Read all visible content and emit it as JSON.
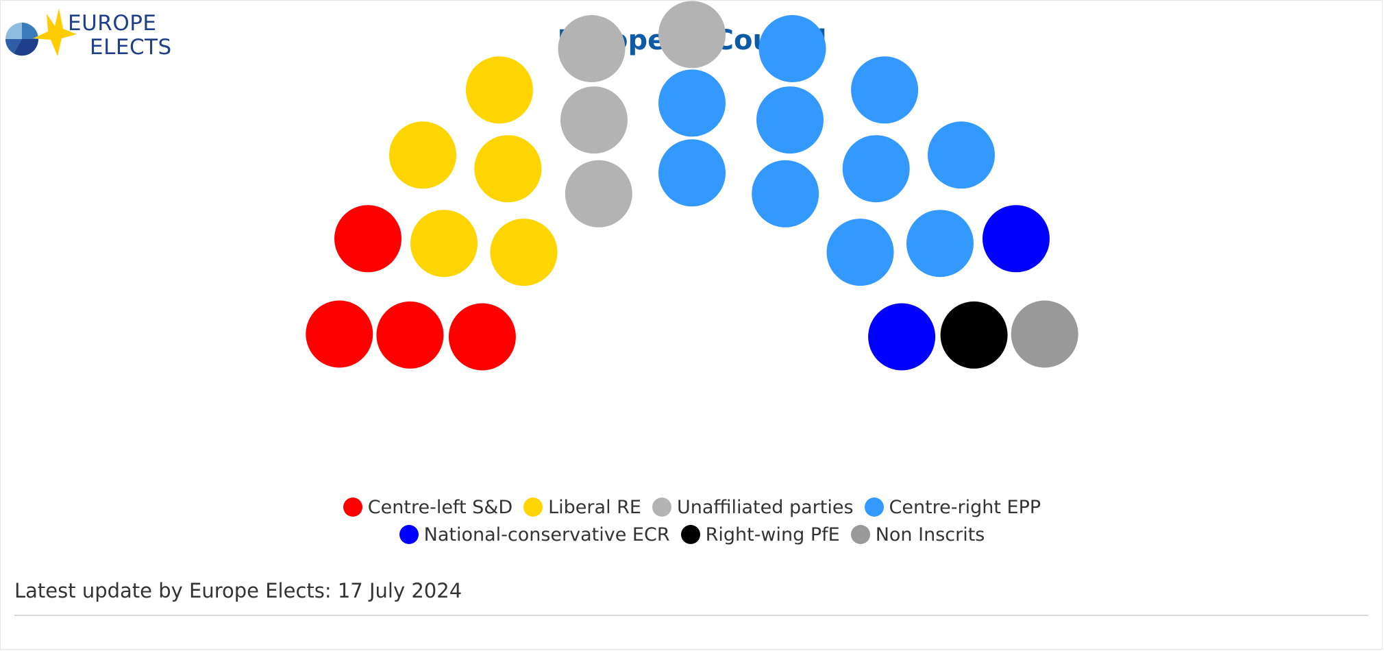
{
  "logo": {
    "line1": "EUROPE",
    "line2": "ELECTS"
  },
  "title": "European Council",
  "footer": "Latest update by Europe Elects: 17 July 2024",
  "chart_data": {
    "type": "parliament",
    "title": "European Council",
    "total_seats": 27,
    "series": [
      {
        "name": "Centre-left S&D",
        "values": [
          4
        ],
        "color": "#ff0000"
      },
      {
        "name": "Liberal RE",
        "values": [
          5
        ],
        "color": "#ffd500"
      },
      {
        "name": "Unaffiliated parties",
        "values": [
          4
        ],
        "color": "#b3b3b3"
      },
      {
        "name": "Centre-right EPP",
        "values": [
          10
        ],
        "color": "#3399ff"
      },
      {
        "name": "National-conservative ECR",
        "values": [
          2
        ],
        "color": "#0000ff"
      },
      {
        "name": "Right-wing PfE",
        "values": [
          1
        ],
        "color": "#000000"
      },
      {
        "name": "Non Inscrits",
        "values": [
          1
        ],
        "color": "#999999"
      }
    ]
  }
}
